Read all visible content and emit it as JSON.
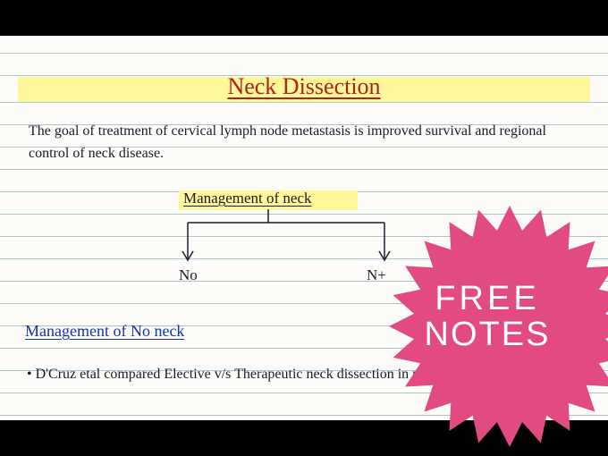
{
  "page": {
    "title": "Neck Dissection",
    "title_color": "#b02020",
    "highlight_color": "#fff89a",
    "rule_color": "#a8c4d0",
    "paper_color": "#fdfcf8",
    "ink_color": "#1a1a2a",
    "section_color": "#1030c0",
    "background": "#000000"
  },
  "body": {
    "goal_text": "The goal of treatment of cervical lymph node metastasis is improved survival and regional control of neck disease.",
    "tree": {
      "label": "Management of neck",
      "left_leaf": "No",
      "right_leaf": "N+"
    },
    "section_heading": "Management of No neck",
    "bullet1": "D'Cruz etal compared Elective v/s Therapeutic neck dissection in node negative oral cancer."
  },
  "badge": {
    "line1": "FREE",
    "line2": "NOTES",
    "fill": "#e24a82",
    "text_color": "#ffffff",
    "points": 24
  }
}
